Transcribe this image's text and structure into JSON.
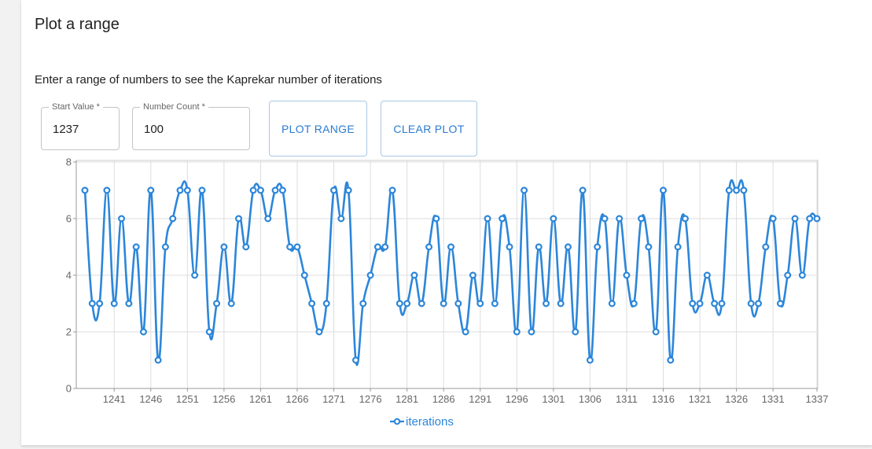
{
  "panel": {
    "title": "Plot a range",
    "description": "Enter a range of numbers to see the Kaprekar number of iterations"
  },
  "form": {
    "start_label": "Start Value",
    "start_value": "1237",
    "count_label": "Number Count",
    "count_value": "100",
    "required_mark": "*",
    "plot_button": "PLOT RANGE",
    "clear_button": "CLEAR PLOT"
  },
  "colors": {
    "series": "#2c86d9",
    "grid": "#dddddd",
    "button_text": "#2a7bd1"
  },
  "chart_data": {
    "type": "line",
    "x_start": 1237,
    "x_ticks": [
      1241,
      1246,
      1251,
      1256,
      1261,
      1266,
      1271,
      1276,
      1281,
      1286,
      1291,
      1296,
      1301,
      1306,
      1311,
      1316,
      1321,
      1326,
      1331,
      1337
    ],
    "y_ticks": [
      0,
      2,
      4,
      6,
      8
    ],
    "ylim": [
      0,
      8
    ],
    "xlim": [
      1237,
      1337
    ],
    "legend_position": "bottom-center",
    "series": [
      {
        "name": "iterations",
        "values": [
          7,
          3,
          3,
          7,
          3,
          6,
          3,
          5,
          2,
          7,
          1,
          5,
          6,
          7,
          7,
          4,
          7,
          2,
          3,
          5,
          3,
          6,
          5,
          7,
          7,
          6,
          7,
          7,
          5,
          5,
          4,
          3,
          2,
          3,
          7,
          6,
          7,
          1,
          3,
          4,
          5,
          5,
          7,
          3,
          3,
          4,
          3,
          5,
          6,
          3,
          5,
          3,
          2,
          4,
          3,
          6,
          3,
          6,
          5,
          2,
          7,
          2,
          5,
          3,
          6,
          3,
          5,
          2,
          7,
          1,
          5,
          6,
          3,
          6,
          4,
          3,
          6,
          5,
          2,
          7,
          1,
          5,
          6,
          3,
          3,
          4,
          3,
          3,
          7,
          7,
          7,
          3,
          3,
          5,
          6,
          3,
          4,
          6,
          4,
          6,
          6
        ]
      }
    ]
  }
}
